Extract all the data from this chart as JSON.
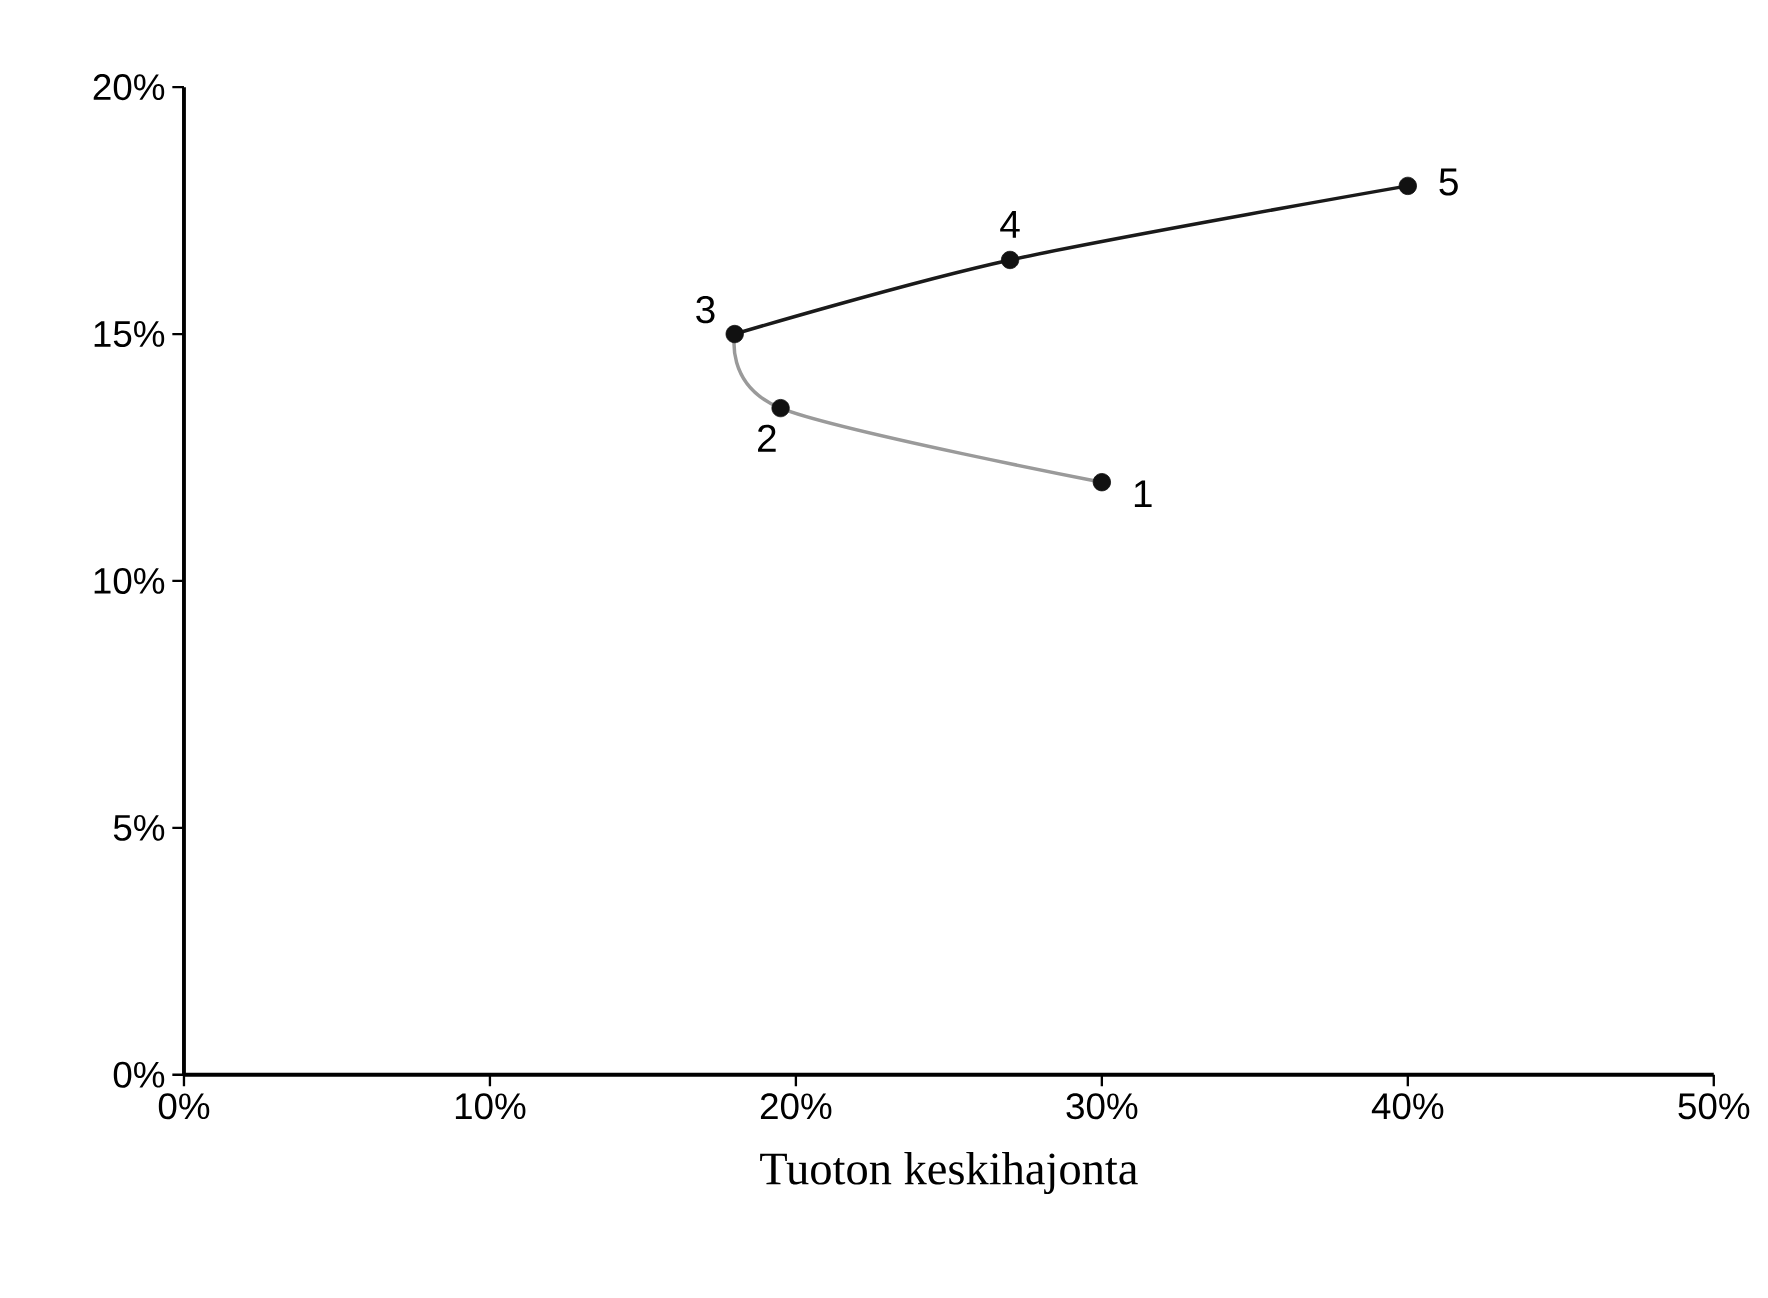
{
  "chart_data": {
    "type": "line",
    "xlabel": "Tuoton keskihajonta",
    "xlim": [
      0,
      50
    ],
    "ylim": [
      0,
      20
    ],
    "xticks": [
      {
        "value": 0,
        "label": "0%"
      },
      {
        "value": 10,
        "label": "10%"
      },
      {
        "value": 20,
        "label": "20%"
      },
      {
        "value": 30,
        "label": "30%"
      },
      {
        "value": 40,
        "label": "40%"
      },
      {
        "value": 50,
        "label": "50%"
      }
    ],
    "yticks": [
      {
        "value": 0,
        "label": "0%"
      },
      {
        "value": 5,
        "label": "5%"
      },
      {
        "value": 10,
        "label": "10%"
      },
      {
        "value": 15,
        "label": "15%"
      },
      {
        "value": 20,
        "label": "20%"
      }
    ],
    "grid": false,
    "series": [
      {
        "color": "#9a9a9a",
        "x": [
          30,
          19.5,
          18
        ],
        "values": [
          12,
          13.5,
          15
        ],
        "marker": "none"
      },
      {
        "color": "#1a1a1a",
        "x": [
          18,
          27,
          40
        ],
        "values": [
          15,
          16.5,
          18
        ],
        "marker": "none"
      },
      {
        "type": "scatter",
        "color": "#111111",
        "x": [
          30,
          19.5,
          18,
          27,
          40
        ],
        "values": [
          12,
          13.5,
          15,
          16.5,
          18
        ],
        "marker": "circle"
      }
    ],
    "annotations": [
      {
        "text": "1",
        "x": 30,
        "y": 12
      },
      {
        "text": "2",
        "x": 19.5,
        "y": 13.5
      },
      {
        "text": "3",
        "x": 18,
        "y": 15
      },
      {
        "text": "4",
        "x": 27,
        "y": 16.5
      },
      {
        "text": "5",
        "x": 40,
        "y": 18
      }
    ]
  }
}
